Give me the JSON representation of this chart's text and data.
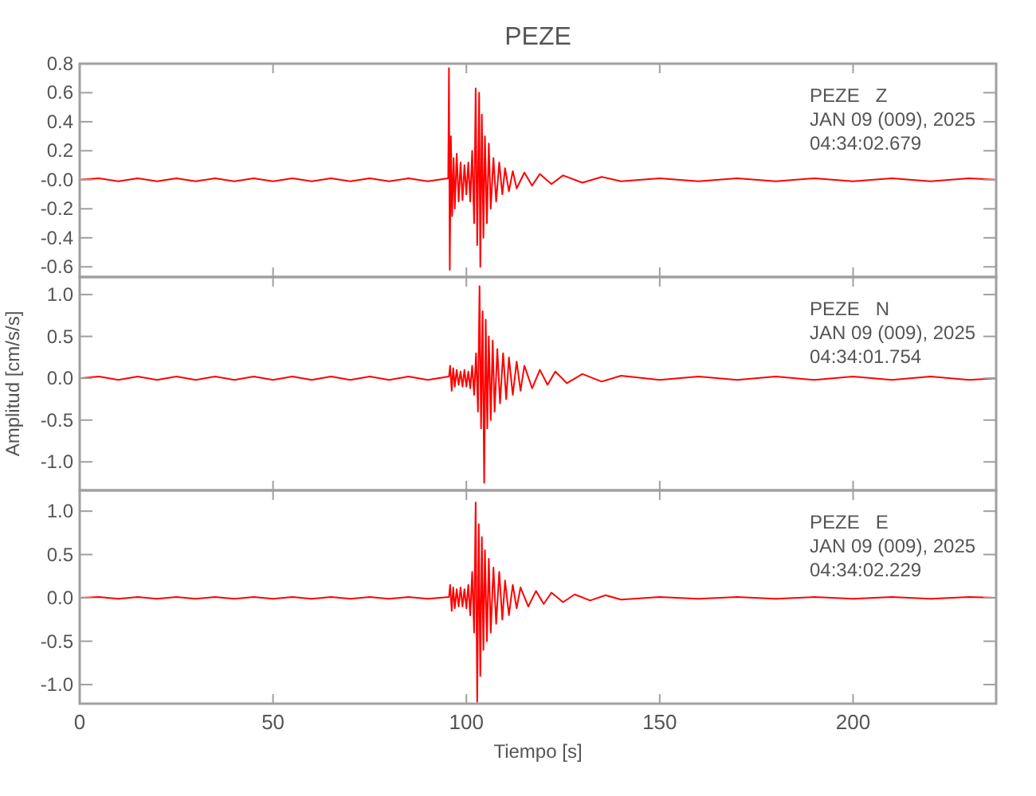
{
  "chart_data": [
    {
      "type": "line",
      "title": "PEZE",
      "xlim": [
        0,
        237
      ],
      "xticks": [
        0,
        50,
        100,
        150,
        200
      ],
      "ylim": [
        -0.67,
        0.8
      ],
      "yticks": [
        {
          "value": -0.6,
          "label": "-0.6"
        },
        {
          "value": -0.4,
          "label": "-0.4"
        },
        {
          "value": -0.2,
          "label": "-0.2"
        },
        {
          "value": 0,
          "label": "-0.0"
        },
        {
          "value": 0.2,
          "label": "0.2"
        },
        {
          "value": 0.4,
          "label": "0.4"
        },
        {
          "value": 0.6,
          "label": "0.6"
        },
        {
          "value": 0.8,
          "label": "0.8"
        }
      ],
      "tick_labels": "y",
      "annotations": [
        "PEZE   Z",
        "JAN 09 (009), 2025",
        "04:34:02.679"
      ],
      "series": [
        {
          "color": "#ff0000",
          "x": [
            0,
            5,
            10,
            15,
            20,
            25,
            30,
            35,
            40,
            45,
            50,
            55,
            60,
            65,
            70,
            75,
            80,
            85,
            90,
            95.3,
            95.5,
            95.7,
            96,
            96.3,
            96.7,
            97,
            97.5,
            98,
            98.5,
            99,
            99.5,
            100,
            100.5,
            101,
            101.5,
            102,
            102.4,
            102.8,
            103.3,
            103.6,
            104,
            104.4,
            104.8,
            105.3,
            105.8,
            106.3,
            107,
            107.7,
            108.5,
            109.3,
            110,
            111,
            112,
            113,
            115,
            117,
            119,
            122,
            125,
            130,
            135,
            140,
            150,
            160,
            170,
            180,
            190,
            200,
            210,
            220,
            230,
            237
          ],
          "values": [
            0,
            0.01,
            -0.01,
            0.01,
            -0.01,
            0.01,
            -0.01,
            0.01,
            -0.01,
            0.01,
            -0.01,
            0.01,
            -0.01,
            0.01,
            -0.01,
            0.01,
            -0.01,
            0.01,
            -0.01,
            0.01,
            0.77,
            -0.62,
            0.3,
            -0.25,
            0.15,
            -0.2,
            0.18,
            -0.15,
            0.12,
            -0.14,
            0.1,
            -0.1,
            0.12,
            -0.15,
            0.2,
            -0.3,
            0.63,
            -0.45,
            0.6,
            -0.6,
            0.45,
            -0.4,
            0.3,
            -0.3,
            0.25,
            -0.2,
            0.15,
            -0.15,
            0.12,
            -0.1,
            0.08,
            -0.08,
            0.06,
            -0.06,
            0.05,
            -0.04,
            0.04,
            -0.03,
            0.03,
            -0.02,
            0.02,
            -0.01,
            0.01,
            -0.01,
            0.01,
            -0.01,
            0.01,
            -0.01,
            0.01,
            -0.01,
            0.01,
            0
          ]
        }
      ]
    },
    {
      "type": "line",
      "ylabel": "Amplitud [cm/s/s]",
      "xlim": [
        0,
        237
      ],
      "xticks": [
        0,
        50,
        100,
        150,
        200
      ],
      "ylim": [
        -1.34,
        1.21
      ],
      "yticks": [
        {
          "value": -1,
          "label": "-1.0"
        },
        {
          "value": -0.5,
          "label": "-0.5"
        },
        {
          "value": 0,
          "label": "0.0"
        },
        {
          "value": 0.5,
          "label": "0.5"
        },
        {
          "value": 1,
          "label": "1.0"
        }
      ],
      "tick_labels": "y",
      "annotations": [
        "PEZE   N",
        "JAN 09 (009), 2025",
        "04:34:01.754"
      ],
      "series": [
        {
          "color": "#ff0000",
          "x": [
            0,
            5,
            10,
            15,
            20,
            25,
            30,
            35,
            40,
            45,
            50,
            55,
            60,
            65,
            70,
            75,
            80,
            85,
            90,
            95.5,
            95.8,
            96.2,
            96.6,
            97,
            97.5,
            98,
            98.5,
            99,
            99.5,
            100,
            100.5,
            101,
            101.5,
            102,
            102.5,
            103,
            103.4,
            103.8,
            104.2,
            104.6,
            105,
            105.4,
            105.8,
            106.3,
            106.8,
            107.3,
            108,
            108.7,
            109.5,
            110.3,
            111,
            112,
            113,
            114,
            115,
            117,
            119,
            121,
            123,
            126,
            130,
            135,
            140,
            150,
            160,
            170,
            180,
            190,
            200,
            210,
            220,
            230,
            237
          ],
          "values": [
            0,
            0.02,
            -0.02,
            0.02,
            -0.02,
            0.02,
            -0.02,
            0.02,
            -0.02,
            0.02,
            -0.02,
            0.02,
            -0.02,
            0.02,
            -0.02,
            0.02,
            -0.02,
            0.02,
            -0.02,
            0.02,
            0.15,
            -0.15,
            0.12,
            -0.1,
            0.1,
            -0.08,
            0.08,
            -0.1,
            0.1,
            -0.1,
            0.08,
            -0.12,
            0.15,
            -0.2,
            0.3,
            -0.4,
            1.1,
            -0.6,
            0.8,
            -1.25,
            0.7,
            -0.6,
            0.5,
            -0.5,
            0.45,
            -0.4,
            0.35,
            -0.3,
            0.3,
            -0.25,
            0.25,
            -0.2,
            0.2,
            -0.15,
            0.15,
            -0.12,
            0.1,
            -0.08,
            0.08,
            -0.06,
            0.05,
            -0.04,
            0.03,
            -0.02,
            0.02,
            -0.02,
            0.02,
            -0.02,
            0.02,
            -0.02,
            0.02,
            -0.02,
            0
          ]
        }
      ]
    },
    {
      "type": "line",
      "xlabel": "Tiempo [s]",
      "xlim": [
        0,
        237
      ],
      "xticks": [
        0,
        50,
        100,
        150,
        200
      ],
      "ylim": [
        -1.22,
        1.24
      ],
      "yticks": [
        {
          "value": -1,
          "label": "-1.0"
        },
        {
          "value": -0.5,
          "label": "-0.5"
        },
        {
          "value": 0,
          "label": "0.0"
        },
        {
          "value": 0.5,
          "label": "0.5"
        },
        {
          "value": 1,
          "label": "1.0"
        }
      ],
      "annotations": [
        "PEZE   E",
        "JAN 09 (009), 2025",
        "04:34:02.229"
      ],
      "series": [
        {
          "color": "#ff0000",
          "x": [
            0,
            5,
            10,
            15,
            20,
            25,
            30,
            35,
            40,
            45,
            50,
            55,
            60,
            65,
            70,
            75,
            80,
            85,
            90,
            95.5,
            95.8,
            96.2,
            96.6,
            97,
            97.5,
            98,
            98.5,
            99,
            99.5,
            100,
            100.5,
            101,
            101.5,
            102,
            102.4,
            102.8,
            103.2,
            103.6,
            104,
            104.4,
            104.8,
            105.3,
            105.8,
            106.3,
            107,
            107.7,
            108.5,
            109.3,
            110,
            111,
            112,
            113,
            114,
            116,
            118,
            120,
            122,
            125,
            128,
            132,
            136,
            140,
            150,
            160,
            170,
            180,
            190,
            200,
            210,
            220,
            230,
            237
          ],
          "values": [
            0,
            0.01,
            -0.01,
            0.01,
            -0.01,
            0.01,
            -0.01,
            0.01,
            -0.01,
            0.01,
            -0.01,
            0.01,
            -0.01,
            0.01,
            -0.01,
            0.01,
            -0.01,
            0.01,
            -0.01,
            0.01,
            0.15,
            -0.15,
            0.12,
            -0.12,
            0.1,
            -0.1,
            0.12,
            -0.1,
            0.1,
            -0.12,
            0.15,
            -0.2,
            0.3,
            -0.4,
            1.1,
            -1.2,
            0.85,
            -0.9,
            0.7,
            -0.6,
            0.55,
            -0.5,
            0.45,
            -0.4,
            0.35,
            -0.3,
            0.3,
            -0.25,
            0.2,
            -0.2,
            0.15,
            -0.12,
            0.12,
            -0.1,
            0.08,
            -0.07,
            0.06,
            -0.05,
            0.04,
            -0.03,
            0.03,
            -0.02,
            0.01,
            -0.01,
            0.01,
            -0.01,
            0.01,
            -0.01,
            0.01,
            -0.01,
            0.01,
            0
          ]
        }
      ]
    }
  ]
}
